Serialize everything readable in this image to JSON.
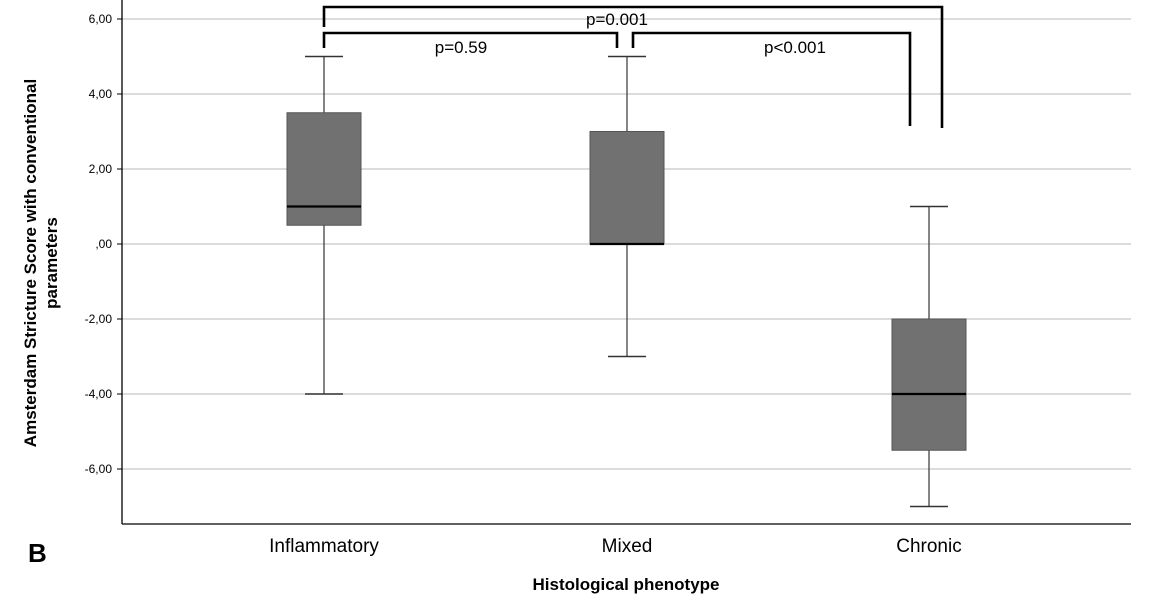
{
  "panel_label": "B",
  "chart_data": {
    "type": "box",
    "xlabel": "Histological phenotype",
    "ylabel": "Amsterdam Stricture Score with conventional parameters",
    "ylabel_lines": [
      "Amsterdam Stricture Score with conventional",
      "parameters"
    ],
    "ylim": [
      -7.4,
      6.4
    ],
    "yticks": [
      -6,
      -4,
      -2,
      0,
      2,
      4,
      6
    ],
    "ytick_labels": [
      "-6,00",
      "-4,00",
      "-2,00",
      ",00",
      "2,00",
      "4,00",
      "6,00"
    ],
    "grid": true,
    "categories": [
      "Inflammatory",
      "Mixed",
      "Chronic"
    ],
    "boxes": [
      {
        "category": "Inflammatory",
        "whisker_low": -4,
        "q1": 0.5,
        "median": 1,
        "q3": 3.5,
        "whisker_high": 5
      },
      {
        "category": "Mixed",
        "whisker_low": -3,
        "q1": 0,
        "median": 0,
        "q3": 3,
        "whisker_high": 5
      },
      {
        "category": "Chronic",
        "whisker_low": -7,
        "q1": -5.5,
        "median": -4,
        "q3": -2,
        "whisker_high": 1
      }
    ],
    "comparisons": [
      {
        "pair": [
          "Inflammatory",
          "Mixed"
        ],
        "label": "p=0.59"
      },
      {
        "pair": [
          "Inflammatory",
          "Chronic"
        ],
        "label": "p=0.001"
      },
      {
        "pair": [
          "Mixed",
          "Chronic"
        ],
        "label": "p<0.001"
      }
    ],
    "colors": {
      "box_fill": "#717171",
      "median": "#000000",
      "grid": "#c8c8c8",
      "bracket": "#000000"
    }
  }
}
